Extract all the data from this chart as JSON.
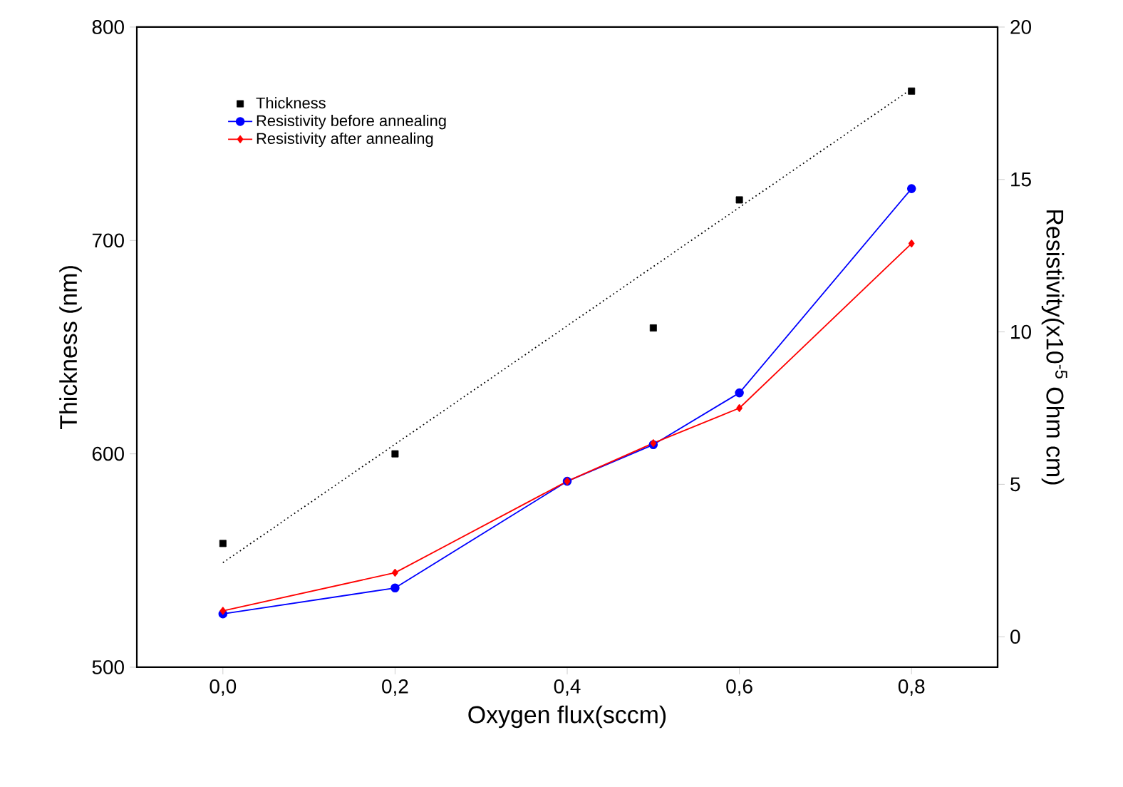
{
  "chart_data": {
    "type": "line",
    "xlabel": "Oxygen flux(sccm)",
    "ylabel": "Thickness (nm)",
    "y2label": "Resistivity(x10$^{-5}$ Ohm cm)",
    "xlim": [
      -0.1,
      0.9
    ],
    "xticks": [
      {
        "value": 0,
        "label": "0,0"
      },
      {
        "value": 0.2,
        "label": "0,2"
      },
      {
        "value": 0.4,
        "label": "0,4"
      },
      {
        "value": 0.6,
        "label": "0,6"
      },
      {
        "value": 0.8,
        "label": "0,8"
      }
    ],
    "ylim": [
      500,
      800
    ],
    "yticks": [
      500,
      600,
      700,
      800
    ],
    "y2lim": [
      -1,
      20
    ],
    "y2ticks": [
      0,
      5,
      10,
      15,
      20
    ],
    "legend": "top left",
    "series": [
      {
        "name": "Thickness",
        "type": "scatter",
        "marker": "square",
        "color": "#000000",
        "x": [
          0,
          0.2,
          0.5,
          0.6,
          0.8
        ],
        "values": [
          558,
          600,
          659,
          719,
          770
        ]
      },
      {
        "marker": "none",
        "line_style": "dotted",
        "color": "#000000",
        "x": [
          0,
          0.8
        ],
        "values": [
          549,
          771
        ]
      },
      {
        "name": "Resistivity before annealing",
        "marker": "circle",
        "color": "#0000ff",
        "axis": "y2",
        "x": [
          0,
          0.2,
          0.4,
          0.5,
          0.6,
          0.8
        ],
        "values": [
          0.75,
          1.6,
          5.1,
          6.3,
          8.0,
          14.7
        ]
      },
      {
        "name": "Resistivity after annealing",
        "marker": "diamond",
        "color": "#ff0000",
        "axis": "y2",
        "x": [
          0,
          0.2,
          0.4,
          0.5,
          0.6,
          0.8
        ],
        "values": [
          0.85,
          2.1,
          5.1,
          6.35,
          7.5,
          12.9
        ]
      }
    ]
  }
}
